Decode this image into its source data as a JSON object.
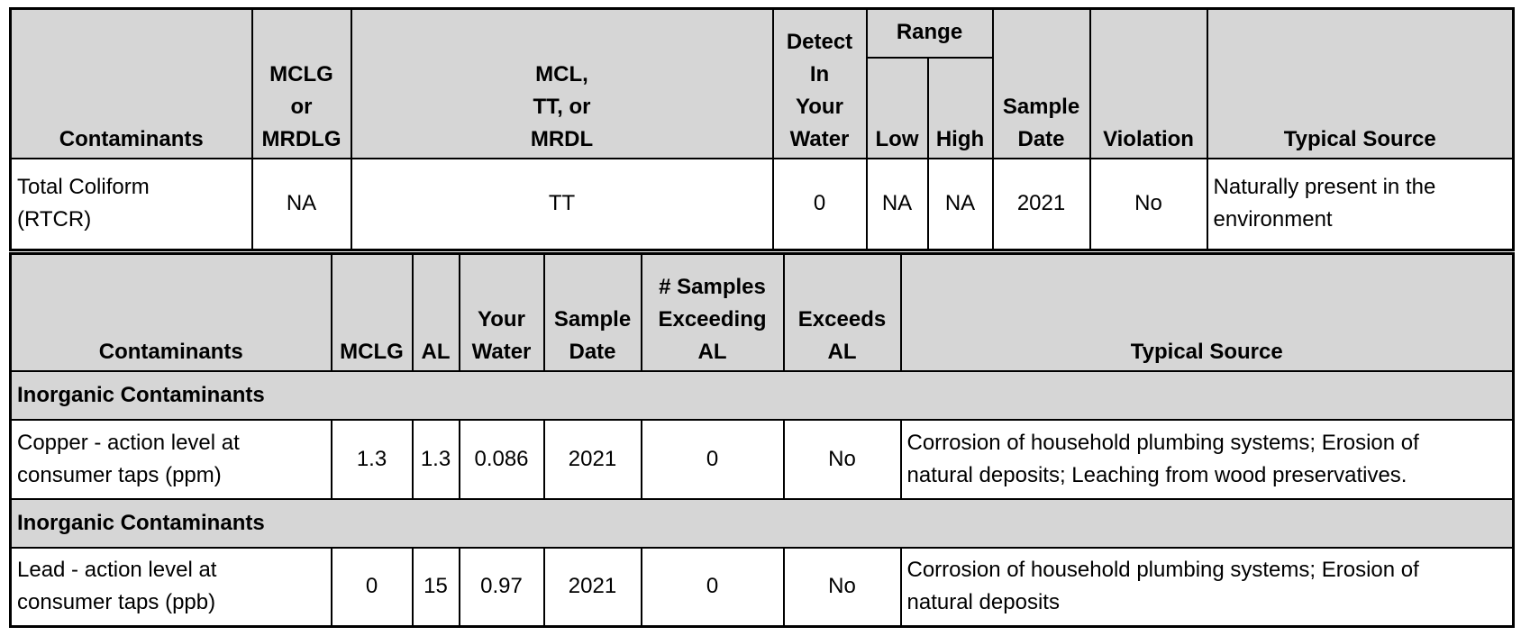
{
  "table1": {
    "headers": {
      "contaminants": "Contaminants",
      "mclg_line1": "MCLG",
      "mclg_line2": "or",
      "mclg_line3": "MRDLG",
      "mcl_line1": "MCL,",
      "mcl_line2": "TT, or",
      "mcl_line3": "MRDL",
      "detect_line1": "Detect",
      "detect_line2": "In",
      "detect_line3": "Your",
      "detect_line4": "Water",
      "range": "Range",
      "low": "Low",
      "high": "High",
      "sample_line1": "Sample",
      "sample_line2": "Date",
      "violation": "Violation",
      "typical_source": "Typical Source"
    },
    "rows": [
      {
        "contaminant_line1": "Total Coliform",
        "contaminant_line2": "(RTCR)",
        "mclg": "NA",
        "mcl": "TT",
        "detect": "0",
        "low": "NA",
        "high": "NA",
        "sample_date": "2021",
        "violation": "No",
        "source_line1": "Naturally present in the",
        "source_line2": "environment"
      }
    ]
  },
  "table2": {
    "headers": {
      "contaminants": "Contaminants",
      "mclg": "MCLG",
      "al": "AL",
      "your_line1": "Your",
      "your_line2": "Water",
      "sample_line1": "Sample",
      "sample_line2": "Date",
      "samples_line1": "# Samples",
      "samples_line2": "Exceeding",
      "samples_line3": "AL",
      "exceeds_line1": "Exceeds",
      "exceeds_line2": "AL",
      "typical_source": "Typical Source"
    },
    "sections": [
      {
        "title": "Inorganic Contaminants",
        "row": {
          "contaminant_line1": "Copper - action level at",
          "contaminant_line2": "consumer taps (ppm)",
          "mclg": "1.3",
          "al": "1.3",
          "your_water": "0.086",
          "sample_date": "2021",
          "samples_exceeding": "0",
          "exceeds": "No",
          "source_line1": "Corrosion of household plumbing systems; Erosion of",
          "source_line2": "natural deposits; Leaching from wood preservatives."
        }
      },
      {
        "title": "Inorganic Contaminants",
        "row": {
          "contaminant_line1": "Lead - action level at",
          "contaminant_line2": "consumer taps (ppb)",
          "mclg": "0",
          "al": "15",
          "your_water": "0.97",
          "sample_date": "2021",
          "samples_exceeding": "0",
          "exceeds": "No",
          "source_line1": "Corrosion of household plumbing systems; Erosion of",
          "source_line2": "natural deposits"
        }
      }
    ]
  }
}
